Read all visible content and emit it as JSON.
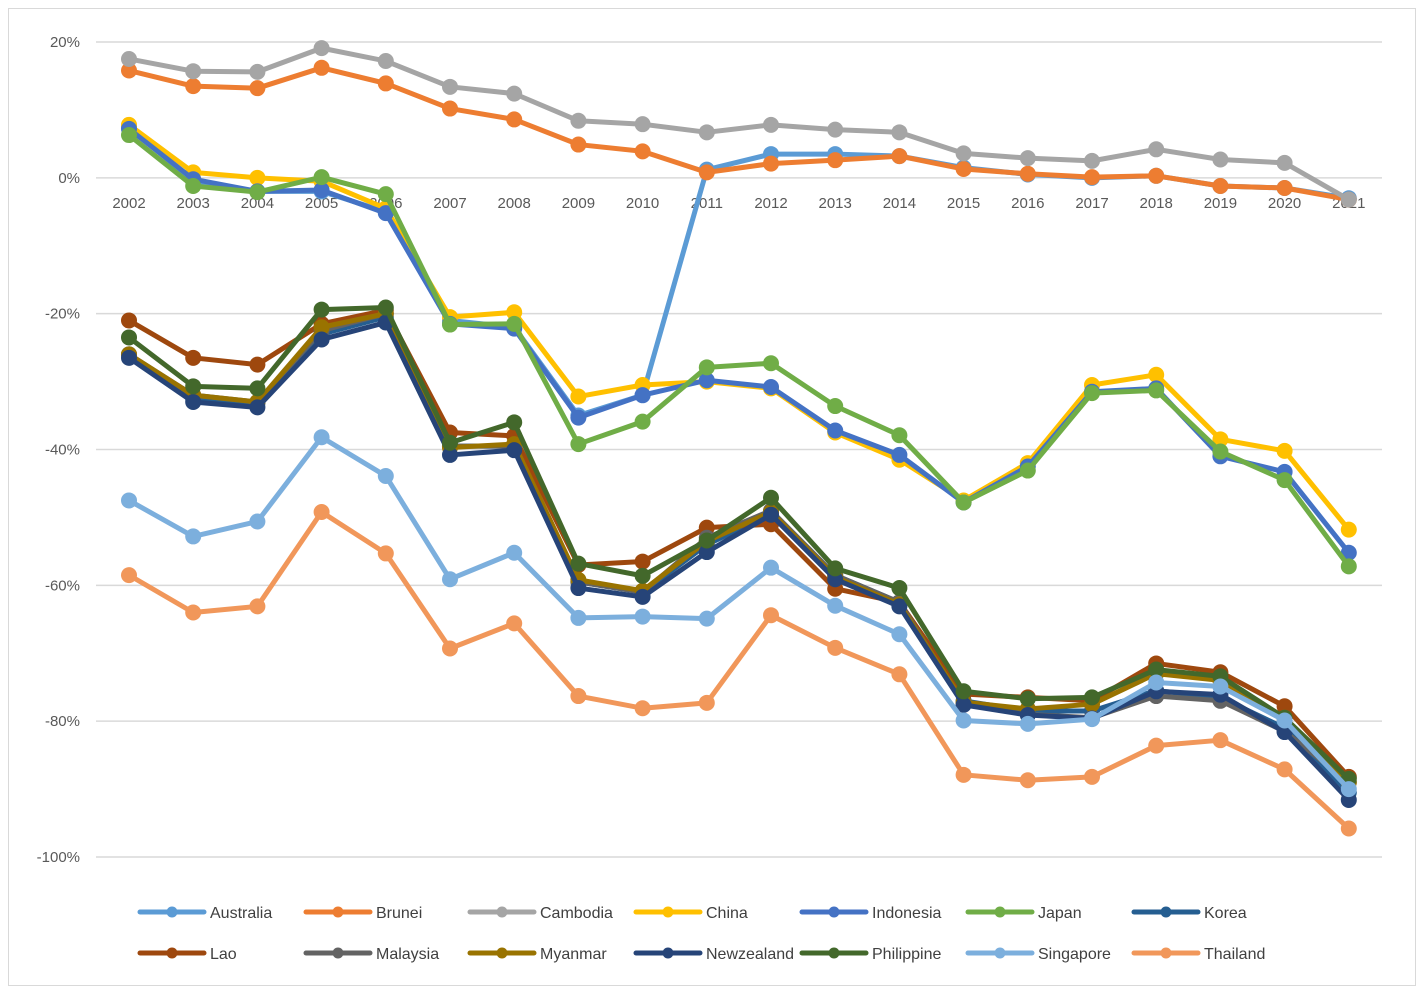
{
  "chart_data": {
    "type": "line",
    "title": "",
    "xlabel": "",
    "ylabel": "",
    "x": [
      "2002",
      "2003",
      "2004",
      "2005",
      "2006",
      "2007",
      "2008",
      "2009",
      "2010",
      "2011",
      "2012",
      "2013",
      "2014",
      "2015",
      "2016",
      "2017",
      "2018",
      "2019",
      "2020",
      "2021"
    ],
    "ylim": [
      -100,
      20
    ],
    "yticks": [
      20,
      0,
      -20,
      -40,
      -60,
      -80,
      -100
    ],
    "ytick_labels": [
      "20%",
      "0%",
      "-20%",
      "-40%",
      "-60%",
      "-80%",
      "-100%"
    ],
    "grid": true,
    "legend_position": "bottom",
    "series": [
      {
        "name": "Australia",
        "color": "#5b9bd5",
        "values": [
          7.5,
          -0.5,
          -2,
          -2,
          -5,
          -21,
          -22,
          -35,
          -32,
          1.2,
          3.5,
          3.5,
          3.2,
          1.5,
          0.5,
          0,
          0.3,
          -1.2,
          -1.5,
          -3
        ]
      },
      {
        "name": "Brunei",
        "color": "#ed7d31",
        "values": [
          15.8,
          13.5,
          13.2,
          16.2,
          13.9,
          10.2,
          8.6,
          4.9,
          3.9,
          0.8,
          2.1,
          2.6,
          3.2,
          1.3,
          0.6,
          0.1,
          0.3,
          -1.2,
          -1.5,
          -3.2
        ]
      },
      {
        "name": "Cambodia",
        "color": "#a5a5a5",
        "values": [
          17.5,
          15.7,
          15.6,
          19.1,
          17.2,
          13.4,
          12.4,
          8.4,
          7.9,
          6.7,
          7.8,
          7.1,
          6.7,
          3.6,
          2.9,
          2.5,
          4.2,
          2.7,
          2.2,
          -3.2
        ]
      },
      {
        "name": "China",
        "color": "#ffc000",
        "values": [
          7.8,
          0.8,
          0,
          -0.5,
          -4.5,
          -20.5,
          -19.8,
          -32.2,
          -30.5,
          -30,
          -31,
          -37.5,
          -41.5,
          -47.5,
          -42,
          -30.5,
          -29,
          -38.5,
          -40.2,
          -51.8
        ]
      },
      {
        "name": "Indonesia",
        "color": "#4472c4",
        "values": [
          7.2,
          -0.2,
          -2,
          -1.8,
          -5.2,
          -21.5,
          -22.2,
          -35.3,
          -32,
          -29.8,
          -30.8,
          -37.2,
          -40.8,
          -47.8,
          -42.5,
          -31.5,
          -31,
          -41,
          -43.3,
          -55.2
        ]
      },
      {
        "name": "Japan",
        "color": "#70ad47",
        "values": [
          6.3,
          -1.2,
          -2.1,
          0.1,
          -2.4,
          -21.6,
          -21.5,
          -39.2,
          -35.9,
          -27.9,
          -27.3,
          -33.6,
          -37.9,
          -47.8,
          -43.1,
          -31.7,
          -31.3,
          -40.3,
          -44.5,
          -57.2
        ]
      },
      {
        "name": "Korea",
        "color": "#255e91",
        "values": [
          -26,
          -32.5,
          -33.2,
          -23,
          -20.5,
          -39.5,
          -39.5,
          -59.5,
          -61,
          -54,
          -49.5,
          -58.5,
          -62.5,
          -77,
          -78.5,
          -78.5,
          -75.5,
          -76.5,
          -81,
          -90.5
        ]
      },
      {
        "name": "Lao",
        "color": "#9e480e",
        "values": [
          -21,
          -26.5,
          -27.5,
          -21.5,
          -19.5,
          -37.5,
          -38,
          -57,
          -56.5,
          -51.5,
          -51,
          -60.5,
          -62.5,
          -76,
          -76.5,
          -77,
          -71.5,
          -72.8,
          -77.8,
          -88.2
        ]
      },
      {
        "name": "Malaysia",
        "color": "#636363",
        "values": [
          -26,
          -32,
          -33,
          -22.5,
          -20,
          -39.5,
          -39.5,
          -59.5,
          -61,
          -53,
          -49,
          -58.5,
          -62.5,
          -77.5,
          -79,
          -79.5,
          -76.3,
          -77,
          -81.5,
          -89
        ]
      },
      {
        "name": "Myanmar",
        "color": "#997300",
        "values": [
          -26,
          -32,
          -33,
          -22,
          -20,
          -39.7,
          -39.2,
          -59.2,
          -60.8,
          -53.5,
          -49.2,
          -58.8,
          -62.8,
          -77.2,
          -78.2,
          -77.5,
          -73,
          -74,
          -79.5,
          -89
        ]
      },
      {
        "name": "Newzealand",
        "color": "#264478",
        "values": [
          -26.5,
          -33,
          -33.8,
          -23.8,
          -21.3,
          -40.8,
          -40.1,
          -60.4,
          -61.7,
          -55.1,
          -49.6,
          -59.1,
          -63.1,
          -77.6,
          -79.1,
          -79.6,
          -75.6,
          -76.1,
          -81.6,
          -91.6
        ]
      },
      {
        "name": "Philippine",
        "color": "#43682b",
        "values": [
          -23.5,
          -30.7,
          -31,
          -19.4,
          -19.1,
          -39,
          -36,
          -56.8,
          -58.6,
          -53.4,
          -47.1,
          -57.5,
          -60.4,
          -75.6,
          -76.7,
          -76.5,
          -72.4,
          -73.4,
          -79.5,
          -88.5
        ]
      },
      {
        "name": "Singapore",
        "color": "#7cafdd",
        "values": [
          -47.5,
          -52.8,
          -50.6,
          -38.2,
          -43.9,
          -59.1,
          -55.2,
          -64.8,
          -64.6,
          -64.9,
          -57.4,
          -63,
          -67.2,
          -79.9,
          -80.4,
          -79.7,
          -74.3,
          -74.9,
          -79.9,
          -90
        ]
      },
      {
        "name": "Thailand",
        "color": "#f1975a",
        "values": [
          -58.5,
          -64,
          -63.1,
          -49.2,
          -55.3,
          -69.3,
          -65.6,
          -76.3,
          -78.1,
          -77.3,
          -64.4,
          -69.2,
          -73.1,
          -87.9,
          -88.7,
          -88.2,
          -83.6,
          -82.8,
          -87.1,
          -95.8
        ]
      }
    ]
  }
}
